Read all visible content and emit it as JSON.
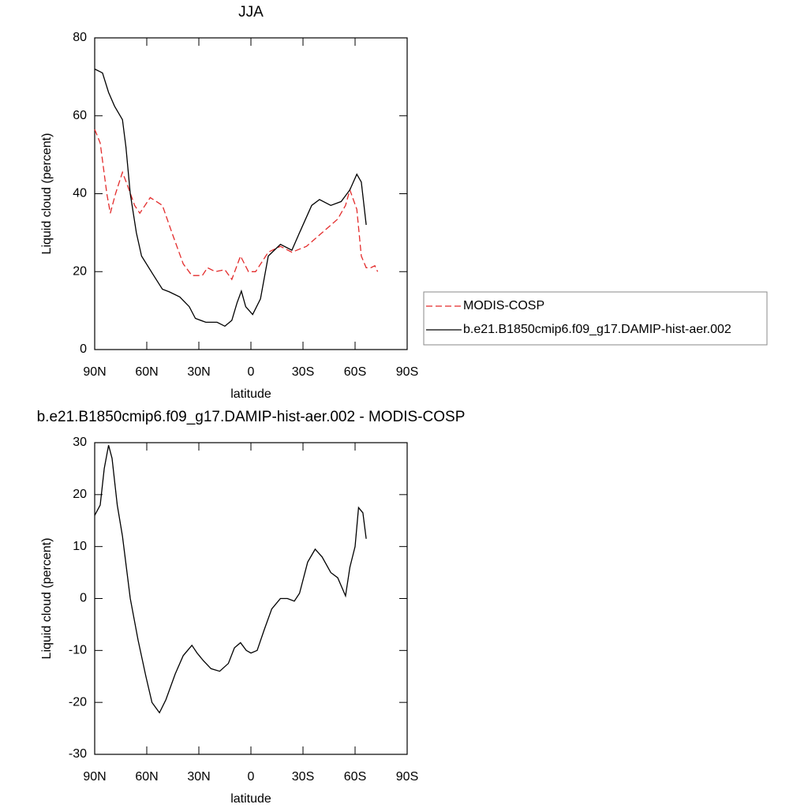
{
  "chart_data": [
    {
      "type": "line",
      "title": "JJA",
      "xlabel": "latitude",
      "ylabel": "Liquid cloud (percent)",
      "xlim": [
        90,
        -90
      ],
      "xticks": [
        {
          "value": 90,
          "label": "90N"
        },
        {
          "value": 60,
          "label": "60N"
        },
        {
          "value": 30,
          "label": "30N"
        },
        0,
        {
          "value": -30,
          "label": "30S"
        },
        {
          "value": -60,
          "label": "60S"
        },
        {
          "value": -90,
          "label": "90S"
        }
      ],
      "ylim": [
        0,
        80
      ],
      "yticks": [
        0,
        20,
        40,
        60,
        80
      ],
      "legend": "right",
      "series": [
        {
          "name": "MODIS-COSP",
          "color": "#e32b2b",
          "dash": true,
          "x": [
            90,
            86.8,
            83,
            81,
            78,
            74,
            71,
            67,
            64,
            58,
            51,
            45.5,
            39,
            34,
            28,
            25,
            20.5,
            15,
            11,
            6,
            1.4,
            -2.7,
            -10,
            -17,
            -23.6,
            -32,
            -41,
            -50,
            -54.5,
            -57,
            -61,
            -63.6,
            -66.4,
            -69,
            -71.4,
            -73
          ],
          "values": [
            56.5,
            53,
            40,
            35,
            40,
            45.5,
            42,
            37,
            35,
            39,
            37,
            30,
            22,
            19,
            19,
            21,
            20,
            20.5,
            18,
            24,
            20,
            20,
            25,
            26.5,
            25,
            26.5,
            30,
            33.5,
            37,
            41,
            36,
            24,
            21,
            21,
            21.5,
            20
          ]
        },
        {
          "name": "b.e21.B1850cmip6.f09_g17.DAMIP-hist-aer.002",
          "color": "#000000",
          "dash": false,
          "x": [
            90,
            85.5,
            82,
            78.6,
            74,
            72,
            69.5,
            66,
            63,
            56,
            51,
            47,
            41,
            35.5,
            32,
            26,
            19.5,
            15,
            11,
            8,
            5.5,
            3,
            -1,
            -5.5,
            -10,
            -17,
            -23.6,
            -28,
            -35,
            -39.5,
            -46,
            -52,
            -57,
            -61,
            -63.6,
            -66.4
          ],
          "values": [
            72,
            71,
            66,
            62.5,
            59,
            52,
            40,
            30,
            24,
            19,
            15.5,
            14.8,
            13.5,
            11,
            8,
            7,
            7,
            6,
            7.5,
            12,
            15,
            11,
            9,
            13,
            24,
            27,
            25.5,
            30,
            37,
            38.5,
            37,
            38,
            41,
            45,
            43,
            32
          ]
        }
      ]
    },
    {
      "type": "line",
      "title": "b.e21.B1850cmip6.f09_g17.DAMIP-hist-aer.002 - MODIS-COSP",
      "xlabel": "latitude",
      "ylabel": "Liquid cloud (percent)",
      "xlim": [
        90,
        -90
      ],
      "xticks": [
        {
          "value": 90,
          "label": "90N"
        },
        {
          "value": 60,
          "label": "60N"
        },
        {
          "value": 30,
          "label": "30N"
        },
        0,
        {
          "value": -30,
          "label": "30S"
        },
        {
          "value": -60,
          "label": "60S"
        },
        {
          "value": -90,
          "label": "90S"
        }
      ],
      "ylim": [
        -30,
        30
      ],
      "yticks": [
        -30,
        -20,
        -10,
        0,
        10,
        20,
        30
      ],
      "series": [
        {
          "color": "#000000",
          "dash": false,
          "x": [
            90,
            86.8,
            84.5,
            82,
            80,
            77,
            74,
            69.5,
            65,
            60.5,
            57,
            52.7,
            49,
            43.6,
            39,
            34,
            31,
            27.3,
            23,
            18,
            13,
            9.5,
            6,
            2.7,
            0,
            -3.6,
            -7.7,
            -12,
            -17,
            -21,
            -25,
            -28,
            -32.7,
            -37,
            -41,
            -46,
            -50,
            -54.5,
            -57,
            -60,
            -62,
            -64.5,
            -66.4
          ],
          "values": [
            16,
            18,
            25,
            29.5,
            27,
            18,
            12,
            0,
            -8,
            -15,
            -20,
            -22,
            -19.5,
            -14.5,
            -11,
            -9,
            -10.5,
            -12,
            -13.5,
            -14,
            -12.5,
            -9.5,
            -8.5,
            -10,
            -10.5,
            -10,
            -6,
            -2,
            0,
            0,
            -0.5,
            1,
            7,
            9.5,
            8,
            5,
            4,
            0.5,
            6,
            10,
            17.5,
            16.5,
            11.5
          ]
        }
      ]
    }
  ]
}
